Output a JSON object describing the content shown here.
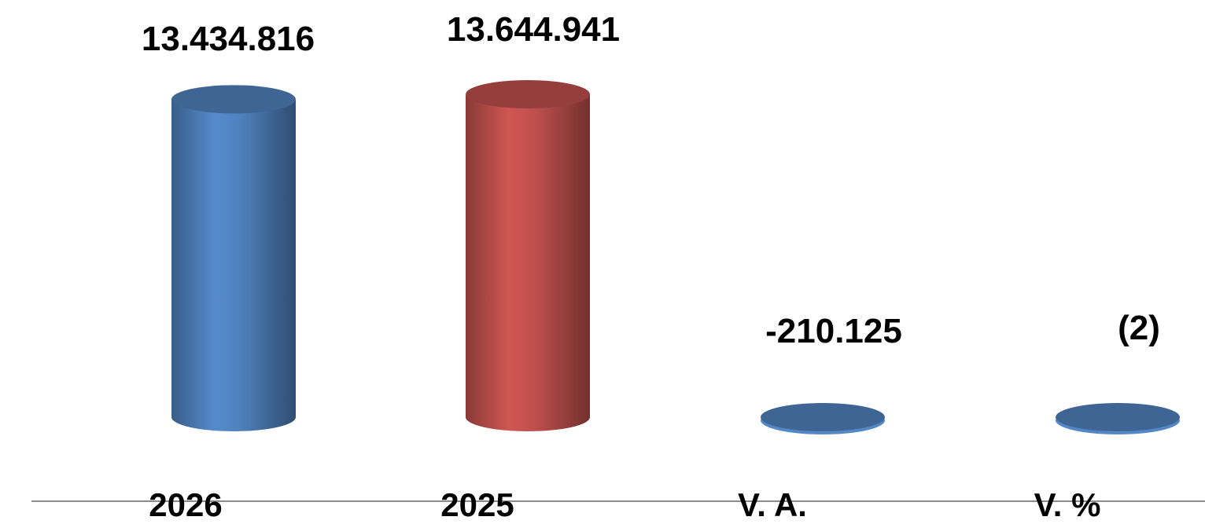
{
  "chart_data": {
    "type": "bar",
    "categories": [
      "2026",
      "2025",
      "V. A.",
      "V. %"
    ],
    "values": [
      13434816,
      13644941,
      -210125,
      -2
    ],
    "data_labels": [
      "13.434.816",
      "13.644.941",
      "-210.125",
      "(2)"
    ],
    "colors": [
      "#4F81BD",
      "#C0504D",
      "#4F81BD",
      "#4F81BD"
    ],
    "title": "",
    "xlabel": "",
    "ylabel": "",
    "grid": false,
    "legend": "none"
  }
}
